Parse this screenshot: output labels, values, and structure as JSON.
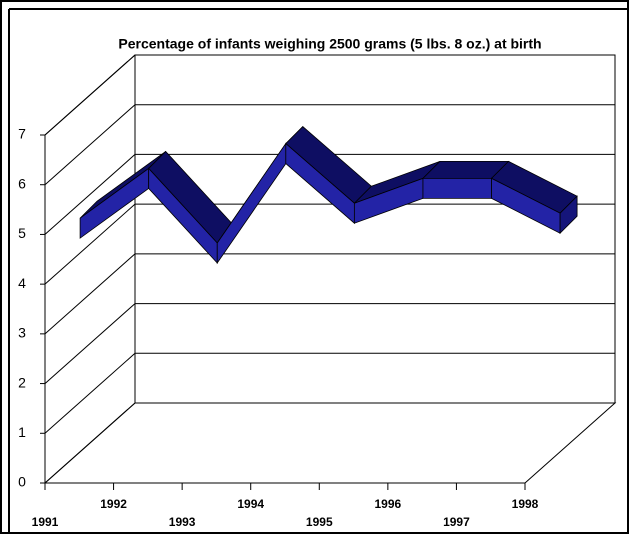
{
  "chart_data": {
    "type": "line3d",
    "title": "Percentage of infants weighing 2500 grams (5 lbs. 8 oz.) at birth",
    "categories": [
      "1991",
      "1992",
      "1993",
      "1994",
      "1995",
      "1996",
      "1997",
      "1998"
    ],
    "values": [
      4.7,
      5.7,
      4.2,
      6.2,
      5.0,
      5.5,
      5.5,
      4.8
    ],
    "color": "#2323a6",
    "ylim": [
      0,
      7
    ],
    "yticks": [
      0,
      1,
      2,
      3,
      4,
      5,
      6,
      7
    ],
    "grid": true
  }
}
